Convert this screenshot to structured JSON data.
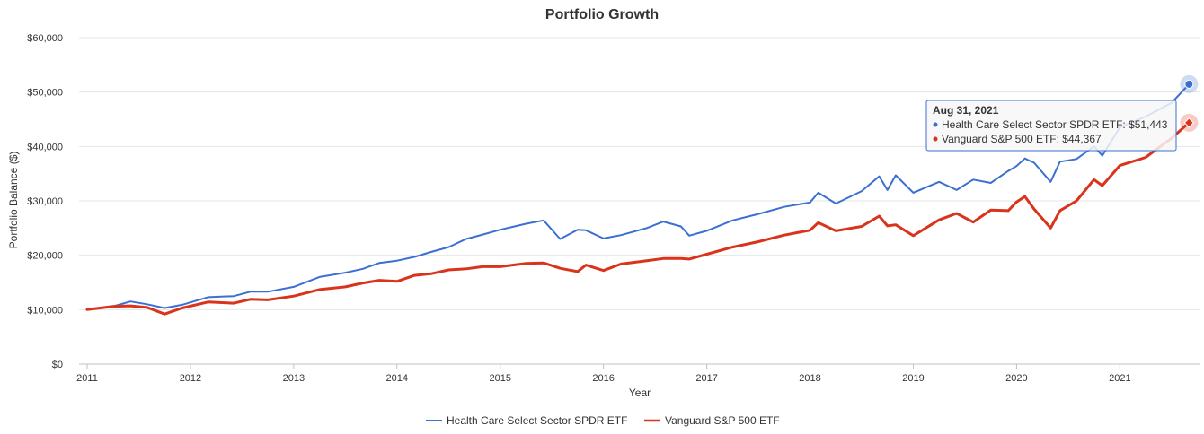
{
  "chart_data": {
    "type": "line",
    "title": "Portfolio Growth",
    "xlabel": "Year",
    "ylabel": "Portfolio Balance ($)",
    "ylim": [
      0,
      60000
    ],
    "xlim": [
      2011.0,
      2021.667
    ],
    "y_ticks": [
      "$0",
      "$10,000",
      "$20,000",
      "$30,000",
      "$40,000",
      "$50,000",
      "$60,000"
    ],
    "x_ticks": [
      "2011",
      "2012",
      "2013",
      "2014",
      "2015",
      "2016",
      "2017",
      "2018",
      "2019",
      "2020",
      "2021"
    ],
    "grid": true,
    "legend_position": "bottom-center",
    "series": [
      {
        "name": "Health Care Select Sector SPDR ETF",
        "color": "#3b6fd1",
        "x": [
          2011.0,
          2011.25,
          2011.42,
          2011.58,
          2011.75,
          2011.92,
          2012.17,
          2012.42,
          2012.58,
          2012.75,
          2013.0,
          2013.25,
          2013.5,
          2013.67,
          2013.83,
          2014.0,
          2014.17,
          2014.33,
          2014.5,
          2014.67,
          2014.83,
          2015.0,
          2015.25,
          2015.42,
          2015.58,
          2015.75,
          2015.83,
          2016.0,
          2016.17,
          2016.42,
          2016.58,
          2016.75,
          2016.83,
          2017.0,
          2017.25,
          2017.5,
          2017.75,
          2018.0,
          2018.08,
          2018.25,
          2018.5,
          2018.67,
          2018.75,
          2018.83,
          2019.0,
          2019.25,
          2019.42,
          2019.58,
          2019.75,
          2019.92,
          2020.0,
          2020.08,
          2020.17,
          2020.33,
          2020.42,
          2020.58,
          2020.75,
          2020.83,
          2021.0,
          2021.25,
          2021.5,
          2021.67
        ],
        "values": [
          10000,
          10600,
          11500,
          11000,
          10300,
          10900,
          12300,
          12500,
          13300,
          13300,
          14200,
          16000,
          16800,
          17500,
          18600,
          19000,
          19700,
          20600,
          21500,
          23000,
          23800,
          24700,
          25800,
          26400,
          23000,
          24700,
          24600,
          23100,
          23700,
          25000,
          26200,
          25300,
          23600,
          24500,
          26400,
          27600,
          28900,
          29700,
          31500,
          29500,
          31800,
          34500,
          32000,
          34700,
          31500,
          33500,
          32000,
          33900,
          33300,
          35500,
          36400,
          37800,
          37000,
          33500,
          37200,
          37700,
          40000,
          38300,
          43500,
          45500,
          48000,
          51443
        ]
      },
      {
        "name": "Vanguard S&P 500 ETF",
        "color": "#d9341b",
        "x": [
          2011.0,
          2011.25,
          2011.42,
          2011.58,
          2011.75,
          2011.92,
          2012.17,
          2012.42,
          2012.58,
          2012.75,
          2013.0,
          2013.25,
          2013.5,
          2013.67,
          2013.83,
          2014.0,
          2014.17,
          2014.33,
          2014.5,
          2014.67,
          2014.83,
          2015.0,
          2015.25,
          2015.42,
          2015.58,
          2015.75,
          2015.83,
          2016.0,
          2016.17,
          2016.42,
          2016.58,
          2016.75,
          2016.83,
          2017.0,
          2017.25,
          2017.5,
          2017.75,
          2018.0,
          2018.08,
          2018.25,
          2018.5,
          2018.67,
          2018.75,
          2018.83,
          2019.0,
          2019.25,
          2019.42,
          2019.58,
          2019.75,
          2019.92,
          2020.0,
          2020.08,
          2020.17,
          2020.33,
          2020.42,
          2020.58,
          2020.75,
          2020.83,
          2021.0,
          2021.25,
          2021.5,
          2021.67
        ],
        "values": [
          10000,
          10600,
          10700,
          10400,
          9200,
          10300,
          11400,
          11200,
          11900,
          11800,
          12500,
          13700,
          14200,
          14900,
          15400,
          15200,
          16300,
          16600,
          17300,
          17500,
          17900,
          17900,
          18500,
          18600,
          17600,
          17000,
          18200,
          17200,
          18400,
          19000,
          19400,
          19400,
          19300,
          20200,
          21500,
          22500,
          23700,
          24600,
          26000,
          24500,
          25300,
          27200,
          25400,
          25600,
          23600,
          26500,
          27700,
          26100,
          28300,
          28200,
          29800,
          30800,
          28500,
          25000,
          28200,
          30000,
          33900,
          32800,
          36500,
          38000,
          41500,
          44367
        ]
      }
    ],
    "tooltip": {
      "date": "Aug 31, 2021",
      "lines": [
        "Health Care Select Sector SPDR ETF: $51,443",
        "Vanguard S&P 500 ETF: $44,367"
      ]
    }
  }
}
